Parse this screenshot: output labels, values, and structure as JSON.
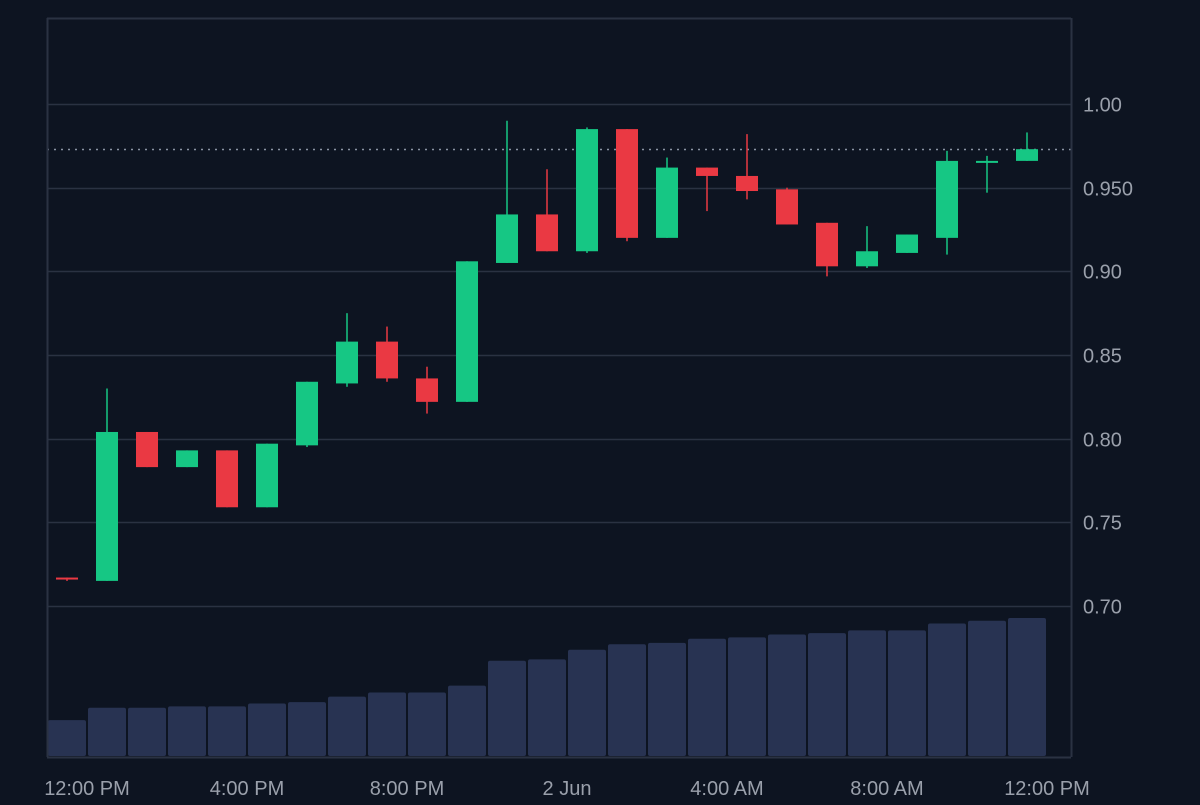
{
  "chart_data": {
    "type": "candlestick",
    "title": "",
    "xlabel": "",
    "ylabel": "",
    "x_ticks": [
      "12:00 PM",
      "4:00 PM",
      "8:00 PM",
      "2 Jun",
      "4:00 AM",
      "8:00 AM",
      "12:00 PM"
    ],
    "y_ticks": [
      "0.70",
      "0.75",
      "0.80",
      "0.85",
      "0.90",
      "0.950",
      "1.00"
    ],
    "y_tick_values": [
      0.7,
      0.75,
      0.8,
      0.85,
      0.9,
      0.95,
      1.0
    ],
    "ylim": [
      0.7,
      1.05
    ],
    "grid": "horizontal",
    "price_line": 0.973,
    "candles": [
      {
        "open": 0.717,
        "high": 0.717,
        "low": 0.715,
        "close": 0.716
      },
      {
        "open": 0.715,
        "high": 0.83,
        "low": 0.715,
        "close": 0.804
      },
      {
        "open": 0.804,
        "high": 0.804,
        "low": 0.783,
        "close": 0.783
      },
      {
        "open": 0.783,
        "high": 0.793,
        "low": 0.783,
        "close": 0.793
      },
      {
        "open": 0.793,
        "high": 0.793,
        "low": 0.759,
        "close": 0.759
      },
      {
        "open": 0.759,
        "high": 0.797,
        "low": 0.759,
        "close": 0.797
      },
      {
        "open": 0.796,
        "high": 0.834,
        "low": 0.795,
        "close": 0.834
      },
      {
        "open": 0.833,
        "high": 0.875,
        "low": 0.831,
        "close": 0.858
      },
      {
        "open": 0.858,
        "high": 0.867,
        "low": 0.834,
        "close": 0.836
      },
      {
        "open": 0.836,
        "high": 0.843,
        "low": 0.815,
        "close": 0.822
      },
      {
        "open": 0.822,
        "high": 0.906,
        "low": 0.822,
        "close": 0.906
      },
      {
        "open": 0.905,
        "high": 0.99,
        "low": 0.905,
        "close": 0.934
      },
      {
        "open": 0.934,
        "high": 0.961,
        "low": 0.912,
        "close": 0.912
      },
      {
        "open": 0.912,
        "high": 0.986,
        "low": 0.911,
        "close": 0.985
      },
      {
        "open": 0.985,
        "high": 0.985,
        "low": 0.918,
        "close": 0.92
      },
      {
        "open": 0.92,
        "high": 0.968,
        "low": 0.92,
        "close": 0.962
      },
      {
        "open": 0.962,
        "high": 0.962,
        "low": 0.936,
        "close": 0.957
      },
      {
        "open": 0.957,
        "high": 0.982,
        "low": 0.943,
        "close": 0.948
      },
      {
        "open": 0.949,
        "high": 0.95,
        "low": 0.928,
        "close": 0.928
      },
      {
        "open": 0.929,
        "high": 0.929,
        "low": 0.897,
        "close": 0.903
      },
      {
        "open": 0.903,
        "high": 0.927,
        "low": 0.902,
        "close": 0.912
      },
      {
        "open": 0.911,
        "high": 0.922,
        "low": 0.911,
        "close": 0.922
      },
      {
        "open": 0.92,
        "high": 0.972,
        "low": 0.91,
        "close": 0.966
      },
      {
        "open": 0.965,
        "high": 0.969,
        "low": 0.947,
        "close": 0.966
      },
      {
        "open": 0.966,
        "high": 0.983,
        "low": 0.966,
        "close": 0.973
      }
    ],
    "volume_relative": [
      0.26,
      0.35,
      0.35,
      0.36,
      0.36,
      0.38,
      0.39,
      0.43,
      0.46,
      0.46,
      0.51,
      0.69,
      0.7,
      0.77,
      0.81,
      0.82,
      0.85,
      0.86,
      0.88,
      0.89,
      0.91,
      0.91,
      0.96,
      0.98,
      1.0
    ]
  },
  "colors": {
    "background": "#0d1421",
    "grid": "#2a3242",
    "axis_text": "#9aa0ab",
    "up": "#16c784",
    "down": "#ea3943",
    "volume": "#283352",
    "price_line": "#8a93a3"
  }
}
